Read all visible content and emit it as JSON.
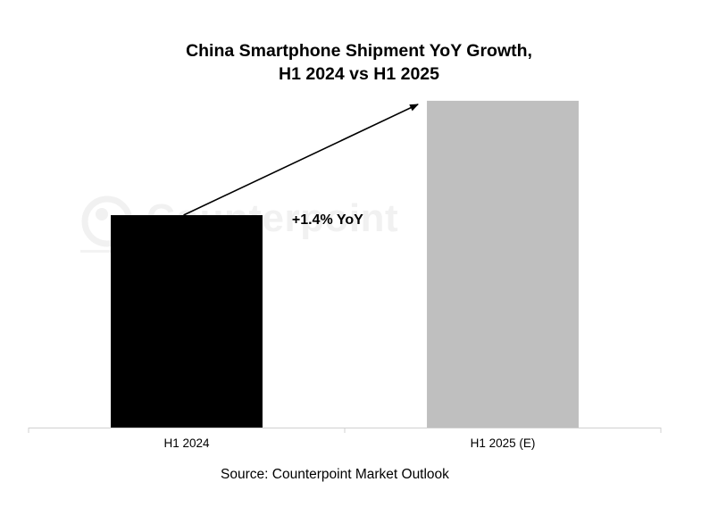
{
  "chart_data": {
    "type": "bar",
    "title": "China Smartphone Shipment YoY Growth,",
    "subtitle": "H1 2024 vs H1 2025",
    "categories": [
      "H1 2024",
      "H1 2025 (E)"
    ],
    "series": [
      {
        "values": [
          100,
          101.4
        ]
      }
    ],
    "annotation": "+1.4% YoY",
    "source": "Source: Counterpoint Market Outlook",
    "watermark": "Counterpoint",
    "ylim": [
      97.4,
      101.65
    ],
    "grid": false,
    "legend": "none",
    "colors": [
      "#000000",
      "#bfbfbf"
    ],
    "axis_color": "#d0d0d0"
  }
}
